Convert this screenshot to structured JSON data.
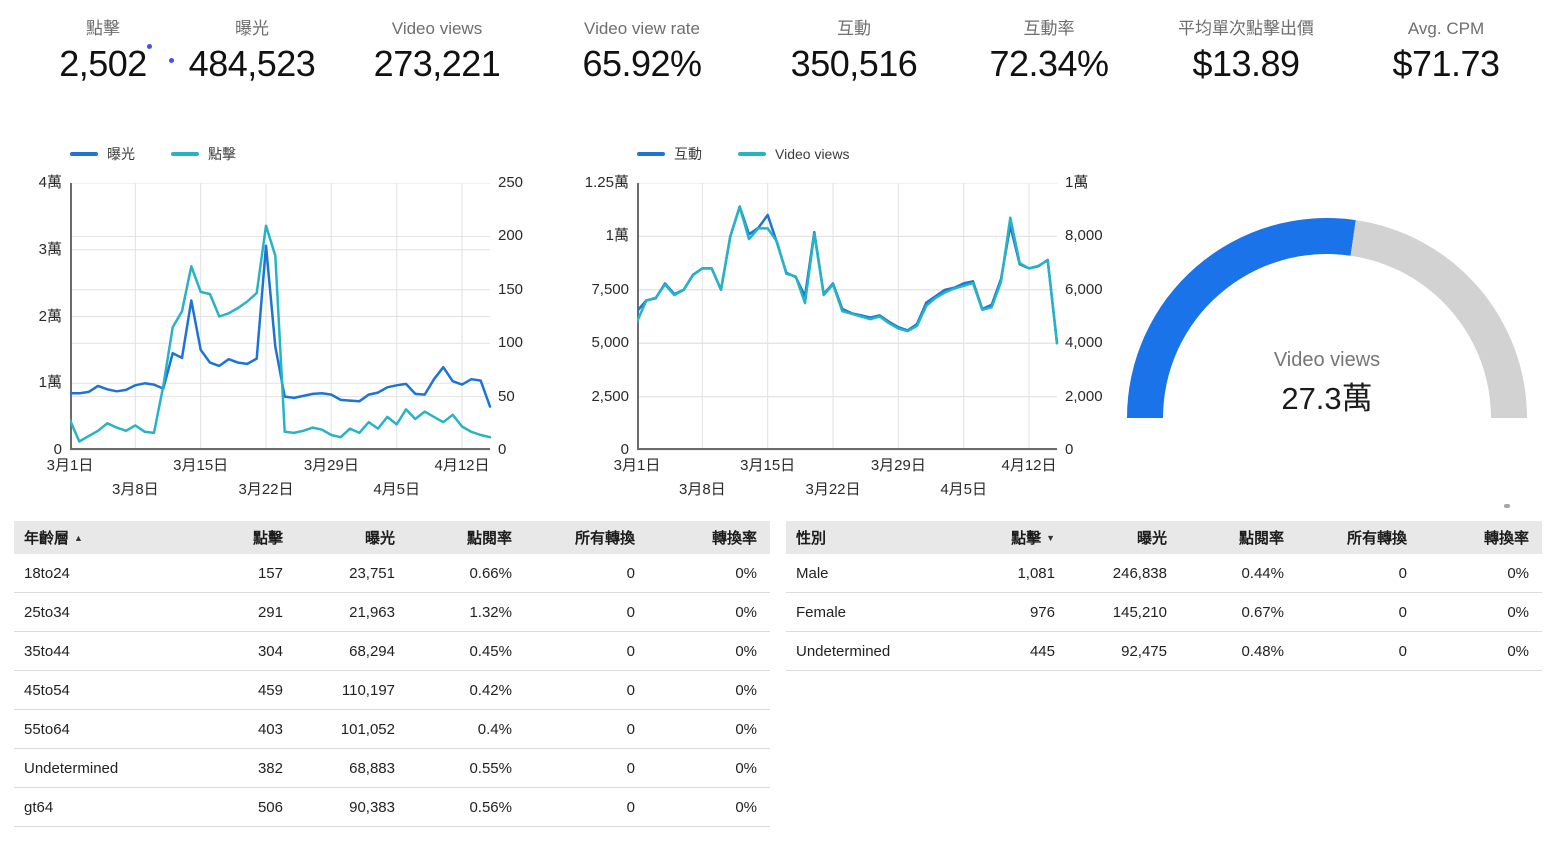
{
  "colors": {
    "blue": "#1d74d4",
    "teal": "#26b4c5",
    "gauge_blue": "#1a73e8",
    "gauge_gray": "#d2d2d2"
  },
  "kpis": [
    {
      "label": "點擊",
      "value": "2,502"
    },
    {
      "label": "曝光",
      "value": "484,523"
    },
    {
      "label": "Video views",
      "value": "273,221"
    },
    {
      "label": "Video view rate",
      "value": "65.92%"
    },
    {
      "label": "互動",
      "value": "350,516"
    },
    {
      "label": "互動率",
      "value": "72.34%"
    },
    {
      "label": "平均單次點擊出價",
      "value": "$13.89"
    },
    {
      "label": "Avg. CPM",
      "value": "$71.73"
    }
  ],
  "chart_data": [
    {
      "type": "line",
      "x": [
        "3月1日",
        "3月2日",
        "3月3日",
        "3月4日",
        "3月5日",
        "3月6日",
        "3月7日",
        "3月8日",
        "3月9日",
        "3月10日",
        "3月11日",
        "3月12日",
        "3月13日",
        "3月14日",
        "3月15日",
        "3月16日",
        "3月17日",
        "3月18日",
        "3月19日",
        "3月20日",
        "3月21日",
        "3月22日",
        "3月23日",
        "3月24日",
        "3月25日",
        "3月26日",
        "3月27日",
        "3月28日",
        "3月29日",
        "3月30日",
        "3月31日",
        "4月1日",
        "4月2日",
        "4月3日",
        "4月4日",
        "4月5日",
        "4月6日",
        "4月7日",
        "4月8日",
        "4月9日",
        "4月10日",
        "4月11日",
        "4月12日",
        "4月13日",
        "4月14日",
        "4月15日"
      ],
      "x_ticks_row1": [
        0,
        14,
        28,
        42
      ],
      "x_ticks_row2": [
        7,
        21,
        35
      ],
      "left_axis": {
        "ticks": [
          "0",
          "1萬",
          "2萬",
          "3萬",
          "4萬"
        ],
        "max": 40000
      },
      "right_axis": {
        "ticks": [
          "0",
          "50",
          "100",
          "150",
          "200",
          "250"
        ],
        "max": 250
      },
      "series": [
        {
          "name": "曝光",
          "axis": "left",
          "color_key": "blue",
          "values": [
            8500,
            8500,
            8700,
            9600,
            9100,
            8800,
            9000,
            9700,
            10000,
            9800,
            9200,
            14500,
            13800,
            22400,
            15000,
            13100,
            12600,
            13600,
            13100,
            12900,
            13700,
            30600,
            15500,
            8000,
            7800,
            8100,
            8400,
            8500,
            8300,
            7500,
            7400,
            7300,
            8300,
            8600,
            9400,
            9700,
            9900,
            8400,
            8300,
            10600,
            12400,
            10300,
            9800,
            10600,
            10400,
            6500
          ]
        },
        {
          "name": "點擊",
          "axis": "right",
          "color_key": "teal",
          "values": [
            28,
            8,
            13,
            18,
            25,
            21,
            18,
            23,
            17,
            16,
            60,
            115,
            130,
            172,
            148,
            146,
            125,
            128,
            133,
            139,
            147,
            210,
            182,
            17,
            16,
            18,
            21,
            19,
            14,
            12,
            20,
            16,
            26,
            20,
            31,
            24,
            38,
            29,
            36,
            31,
            26,
            33,
            22,
            17,
            14,
            12
          ]
        }
      ]
    },
    {
      "type": "line",
      "x": [
        "3月1日",
        "3月2日",
        "3月3日",
        "3月4日",
        "3月5日",
        "3月6日",
        "3月7日",
        "3月8日",
        "3月9日",
        "3月10日",
        "3月11日",
        "3月12日",
        "3月13日",
        "3月14日",
        "3月15日",
        "3月16日",
        "3月17日",
        "3月18日",
        "3月19日",
        "3月20日",
        "3月21日",
        "3月22日",
        "3月23日",
        "3月24日",
        "3月25日",
        "3月26日",
        "3月27日",
        "3月28日",
        "3月29日",
        "3月30日",
        "3月31日",
        "4月1日",
        "4月2日",
        "4月3日",
        "4月4日",
        "4月5日",
        "4月6日",
        "4月7日",
        "4月8日",
        "4月9日",
        "4月10日",
        "4月11日",
        "4月12日",
        "4月13日",
        "4月14日",
        "4月15日"
      ],
      "x_ticks_row1": [
        0,
        14,
        28,
        42
      ],
      "x_ticks_row2": [
        7,
        21,
        35
      ],
      "left_axis": {
        "ticks": [
          "0",
          "2,500",
          "5,000",
          "7,500",
          "1萬",
          "1.25萬"
        ],
        "max": 12500
      },
      "right_axis": {
        "ticks": [
          "0",
          "2,000",
          "4,000",
          "6,000",
          "8,000",
          "1萬"
        ],
        "max": 10000
      },
      "series": [
        {
          "name": "互動",
          "axis": "left",
          "color_key": "blue",
          "values": [
            6500,
            7000,
            7100,
            7800,
            7300,
            7500,
            8200,
            8500,
            8500,
            7500,
            10000,
            11400,
            10100,
            10400,
            11000,
            9700,
            8300,
            8100,
            7200,
            10200,
            7300,
            7800,
            6600,
            6400,
            6300,
            6200,
            6300,
            6000,
            5750,
            5600,
            5900,
            6900,
            7200,
            7500,
            7600,
            7800,
            7900,
            6600,
            6800,
            8000,
            10500,
            8700,
            8500,
            8600,
            8900,
            5000
          ]
        },
        {
          "name": "Video views",
          "axis": "right",
          "color_key": "teal",
          "values": [
            4800,
            5600,
            5700,
            6200,
            5800,
            6000,
            6550,
            6800,
            6800,
            6000,
            8000,
            9100,
            7900,
            8300,
            8300,
            7800,
            6600,
            6500,
            5500,
            8100,
            5800,
            6200,
            5200,
            5100,
            5000,
            4900,
            5000,
            4750,
            4550,
            4450,
            4650,
            5400,
            5700,
            5900,
            6050,
            6150,
            6250,
            5250,
            5350,
            6300,
            8700,
            7000,
            6800,
            6900,
            7100,
            4000
          ]
        }
      ]
    },
    {
      "type": "gauge",
      "label": "Video views",
      "display_value": "27.3萬",
      "value": 273221,
      "fill_fraction": 0.546
    }
  ],
  "tables": {
    "age": {
      "headers": [
        "年齡層",
        "點擊",
        "曝光",
        "點閱率",
        "所有轉換",
        "轉換率"
      ],
      "sort": {
        "column": 0,
        "direction": "asc"
      },
      "rows": [
        [
          "18to24",
          "157",
          "23,751",
          "0.66%",
          "0",
          "0%"
        ],
        [
          "25to34",
          "291",
          "21,963",
          "1.32%",
          "0",
          "0%"
        ],
        [
          "35to44",
          "304",
          "68,294",
          "0.45%",
          "0",
          "0%"
        ],
        [
          "45to54",
          "459",
          "110,197",
          "0.42%",
          "0",
          "0%"
        ],
        [
          "55to64",
          "403",
          "101,052",
          "0.4%",
          "0",
          "0%"
        ],
        [
          "Undetermined",
          "382",
          "68,883",
          "0.55%",
          "0",
          "0%"
        ],
        [
          "gt64",
          "506",
          "90,383",
          "0.56%",
          "0",
          "0%"
        ]
      ]
    },
    "gender": {
      "headers": [
        "性別",
        "點擊",
        "曝光",
        "點閱率",
        "所有轉換",
        "轉換率"
      ],
      "sort": {
        "column": 1,
        "direction": "desc"
      },
      "rows": [
        [
          "Male",
          "1,081",
          "246,838",
          "0.44%",
          "0",
          "0%"
        ],
        [
          "Female",
          "976",
          "145,210",
          "0.67%",
          "0",
          "0%"
        ],
        [
          "Undetermined",
          "445",
          "92,475",
          "0.48%",
          "0",
          "0%"
        ]
      ]
    }
  }
}
